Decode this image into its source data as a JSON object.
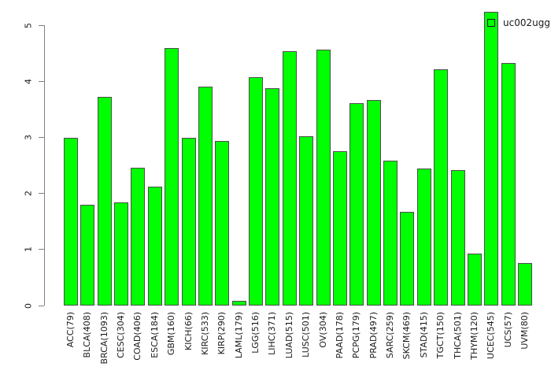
{
  "chart_data": {
    "type": "bar",
    "title": "",
    "xlabel": "",
    "ylabel": "",
    "legend": {
      "label": "uc002ugg",
      "position": "top-right"
    },
    "grid": false,
    "bar_color": "#00ff00",
    "bar_border_color": "#4d4d4d",
    "axis_color": "#808080",
    "text_color": "#1a1a1a",
    "background_color": "#ffffff",
    "categories": [
      "ACC(79)",
      "BLCA(408)",
      "BRCA(1093)",
      "CESC(304)",
      "COAD(406)",
      "ESCA(184)",
      "GBM(160)",
      "KICH(66)",
      "KIRC(533)",
      "KIRP(290)",
      "LAML(179)",
      "LGG(516)",
      "LIHC(371)",
      "LUAD(515)",
      "LUSC(501)",
      "OV(304)",
      "PAAD(178)",
      "PCPG(179)",
      "PRAD(497)",
      "SARC(259)",
      "SKCM(469)",
      "STAD(415)",
      "TGCT(150)",
      "THCA(501)",
      "THYM(120)",
      "UCEC(545)",
      "UCS(57)",
      "UVM(80)"
    ],
    "values": [
      2.99,
      1.8,
      3.72,
      1.84,
      2.46,
      2.12,
      4.59,
      2.99,
      3.9,
      2.94,
      0.08,
      4.07,
      3.88,
      4.53,
      3.02,
      4.57,
      2.75,
      3.61,
      3.67,
      2.58,
      1.67,
      2.44,
      4.21,
      2.42,
      0.93,
      5.24,
      4.33,
      0.76
    ],
    "yaxis": {
      "min": 0,
      "max": 5,
      "ticks": [
        0,
        1,
        2,
        3,
        4,
        5
      ]
    }
  }
}
